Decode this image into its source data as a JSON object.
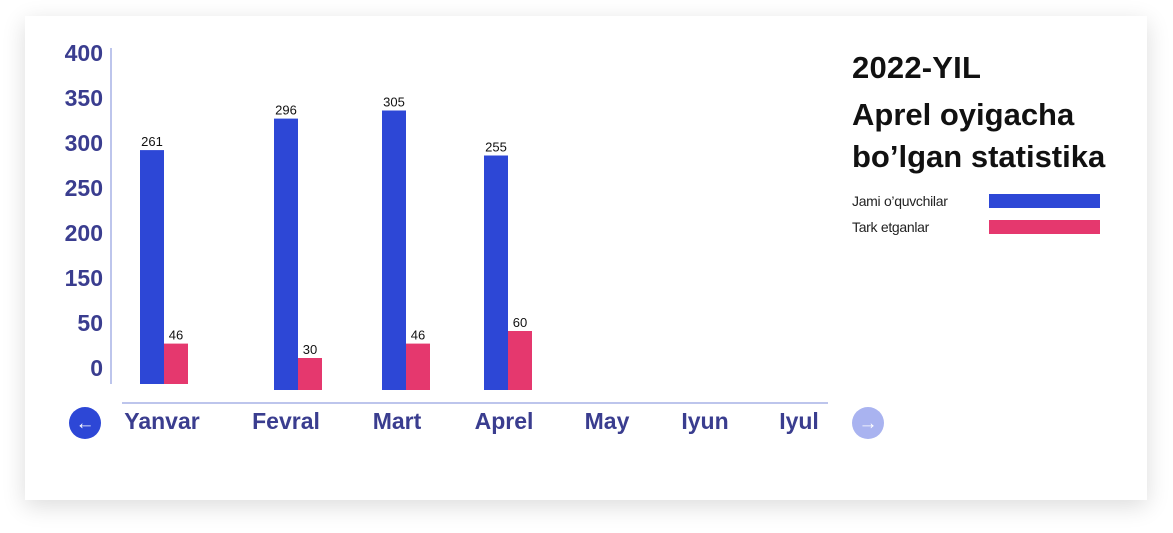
{
  "chart_data": {
    "type": "bar",
    "title": "2022-YIL",
    "subtitle": "Aprel oyigacha bo’lgan statistika",
    "categories": [
      "Yanvar",
      "Fevral",
      "Mart",
      "Aprel",
      "May",
      "Iyun",
      "Iyul"
    ],
    "series": [
      {
        "name": "Jami o’quvchilar",
        "color": "#2d47d6",
        "values": [
          261,
          296,
          305,
          255,
          null,
          null,
          null
        ]
      },
      {
        "name": "Tark etganlar",
        "color": "#e5386e",
        "values": [
          46,
          30,
          46,
          60,
          null,
          null,
          null
        ]
      }
    ],
    "yticks": [
      "0",
      "50",
      "150",
      "200",
      "250",
      "300",
      "350",
      "400"
    ],
    "ylim": [
      0,
      400
    ],
    "grid": false,
    "legend_position": "right"
  },
  "colors": {
    "axis_text": "#3a3d8f",
    "axis_line": "#7b8bd8",
    "primary": "#2d47d6",
    "secondary": "#e5386e"
  },
  "nav": {
    "prev_icon": "arrow-left-icon",
    "next_icon": "arrow-right-icon"
  }
}
